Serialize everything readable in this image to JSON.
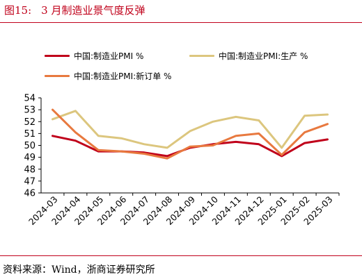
{
  "header": {
    "fig_num": "图15:",
    "title": "3 月制造业景气度反弹"
  },
  "source_text": "资料来源：Wind，浙商证券研究所",
  "chart_data": {
    "type": "line",
    "title": "3 月制造业景气度反弹",
    "x": [
      "2024-03",
      "2024-04",
      "2024-05",
      "2024-06",
      "2024-07",
      "2024-08",
      "2024-09",
      "2024-10",
      "2024-11",
      "2024-12",
      "2025-01",
      "2025-02",
      "2025-03"
    ],
    "series": [
      {
        "name": "中国:制造业PMI %",
        "color": "#c0001a",
        "values": [
          50.8,
          50.4,
          49.5,
          49.5,
          49.4,
          49.1,
          49.8,
          50.1,
          50.3,
          50.1,
          49.1,
          50.2,
          50.5
        ]
      },
      {
        "name": "中国:制造业PMI:生产 %",
        "color": "#dcc67e",
        "values": [
          52.2,
          52.9,
          50.8,
          50.6,
          50.1,
          49.8,
          51.2,
          52.0,
          52.4,
          52.1,
          49.8,
          52.5,
          52.6
        ]
      },
      {
        "name": "中国:制造业PMI:新订单 %",
        "color": "#e8793f",
        "values": [
          53.0,
          51.1,
          49.6,
          49.5,
          49.3,
          48.9,
          49.9,
          50.0,
          50.8,
          51.0,
          49.2,
          51.1,
          51.8
        ]
      }
    ],
    "ylim": [
      46,
      54
    ],
    "yticks": [
      "46",
      "47",
      "48",
      "49",
      "50",
      "51",
      "52",
      "53",
      "54"
    ],
    "xlabel": "",
    "ylabel": "",
    "grid": false,
    "legend": "top"
  }
}
